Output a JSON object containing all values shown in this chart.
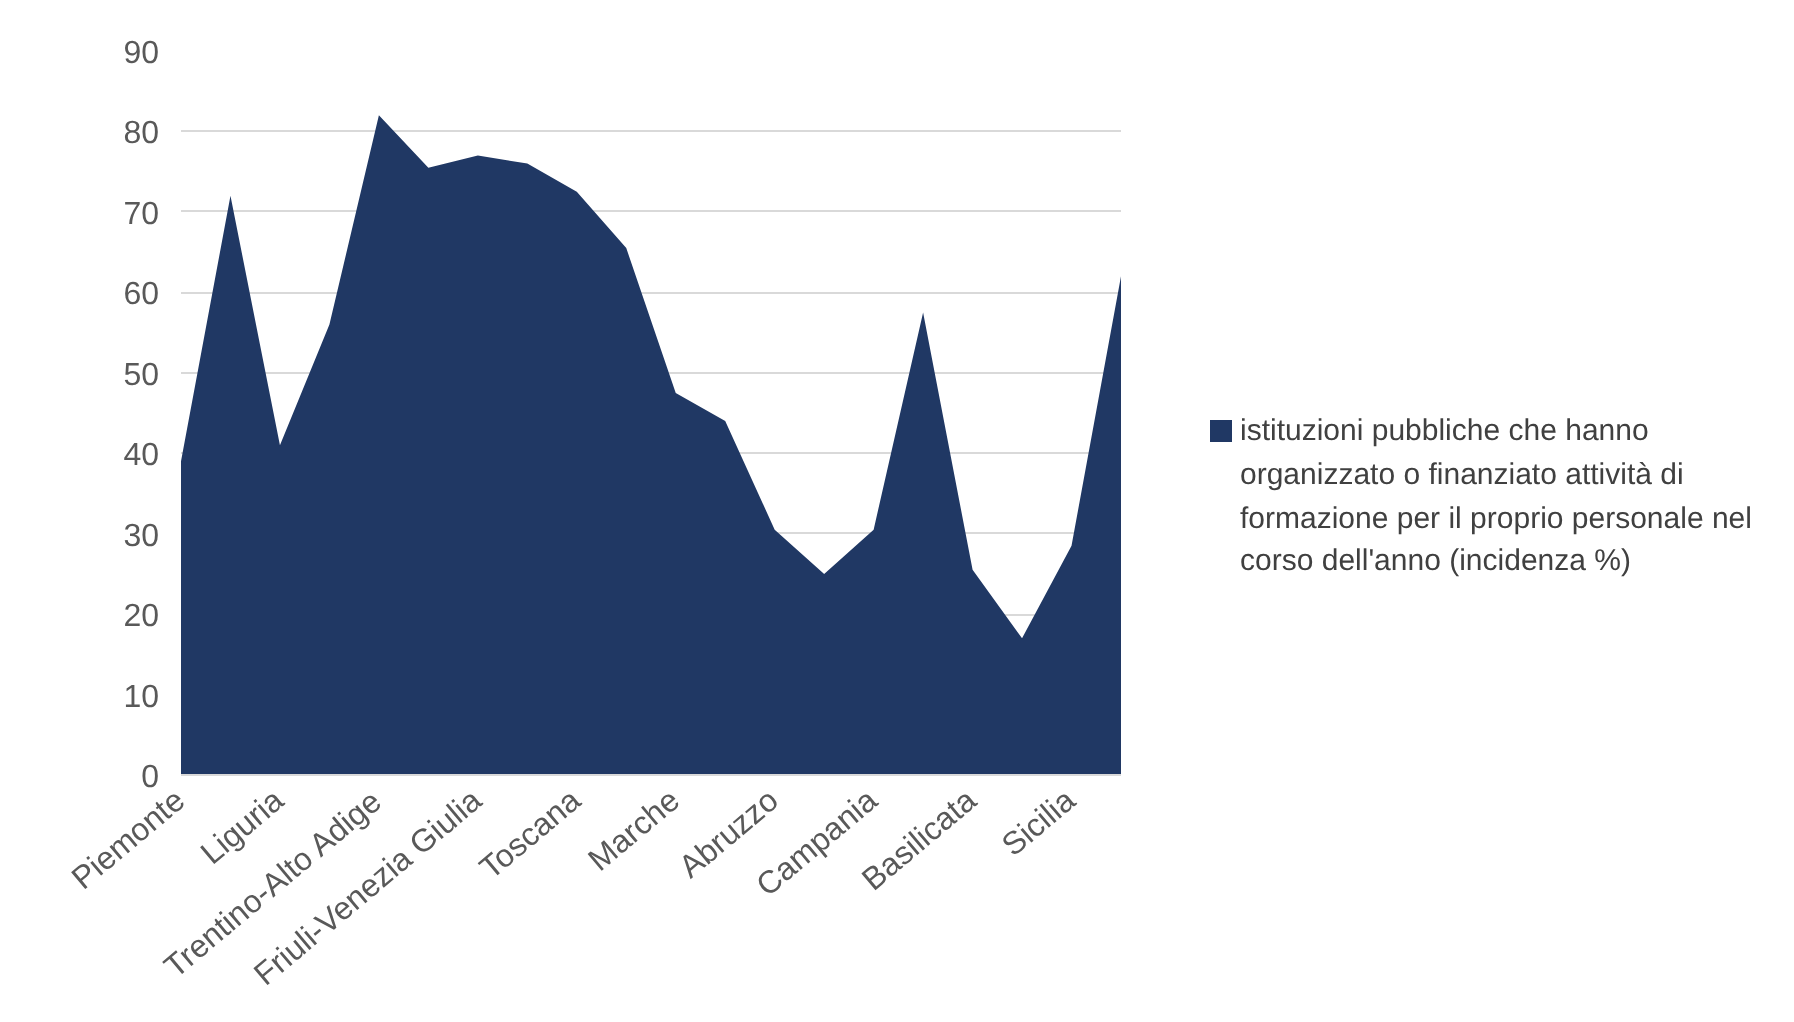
{
  "chart_data": {
    "type": "area",
    "categories": [
      "Piemonte",
      null,
      "Liguria",
      null,
      "Trentino-Alto Adige",
      null,
      "Friuli-Venezia Giulia",
      null,
      "Toscana",
      null,
      "Marche",
      null,
      "Abruzzo",
      null,
      "Campania",
      null,
      "Basilicata",
      null,
      "Sicilia",
      null
    ],
    "series": [
      {
        "name": "istituzioni pubbliche che hanno organizzato o finanziato attività di formazione per il proprio personale nel corso dell'anno (incidenza %)",
        "color": "#203864",
        "values": [
          39,
          72,
          41,
          56,
          82,
          75.5,
          77,
          76,
          72.5,
          65.5,
          47.5,
          44,
          30.5,
          25,
          30.5,
          57.5,
          25.5,
          17,
          28.5,
          62
        ]
      }
    ],
    "ylim": [
      0,
      90
    ],
    "yticks": [
      0,
      10,
      20,
      30,
      40,
      50,
      60,
      70,
      80,
      90
    ],
    "grid": "y",
    "legend": "right"
  }
}
